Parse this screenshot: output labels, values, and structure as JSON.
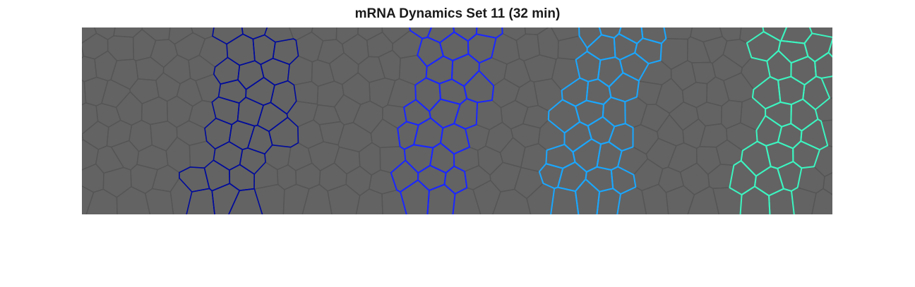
{
  "figure": {
    "title": "mRNA Dynamics Set 11 (32 min)"
  },
  "colors": {
    "background": "#636363",
    "cell_edge": "#555555",
    "stripes": [
      "#000b9c",
      "#1a27ff",
      "#1aa7ff",
      "#3cf5c0"
    ]
  },
  "stripes": [
    {
      "name": "stripe-1",
      "color": "#000b9c"
    },
    {
      "name": "stripe-2",
      "color": "#1a27ff"
    },
    {
      "name": "stripe-3",
      "color": "#1aa7ff"
    },
    {
      "name": "stripe-4",
      "color": "#3cf5c0"
    }
  ]
}
